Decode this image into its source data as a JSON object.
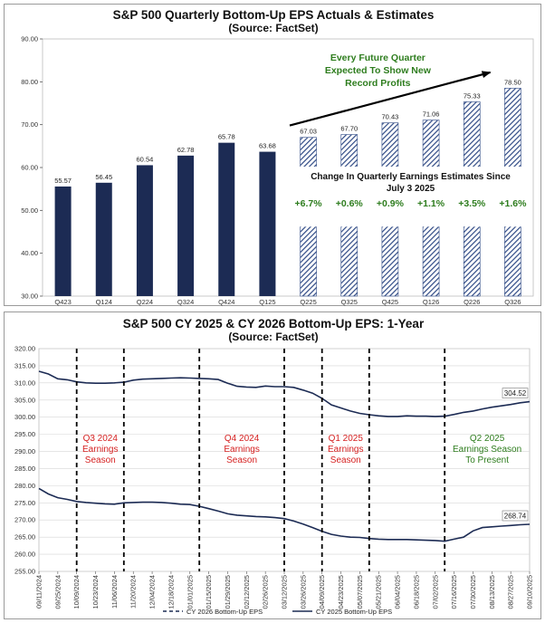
{
  "chart_data": [
    {
      "type": "bar",
      "title": "S&P 500 Quarterly Bottom-Up EPS Actuals & Estimates",
      "subtitle": "(Source: FactSet)",
      "categories": [
        "Q423",
        "Q124",
        "Q224",
        "Q324",
        "Q424",
        "Q125",
        "Q225",
        "Q325",
        "Q425",
        "Q126",
        "Q226",
        "Q326"
      ],
      "series": [
        {
          "values": [
            55.57,
            56.45,
            60.54,
            62.78,
            65.78,
            63.68,
            67.03,
            67.7,
            70.43,
            71.06,
            75.33,
            78.5
          ]
        }
      ],
      "value_labels": [
        "55.57",
        "56.45",
        "60.54",
        "62.78",
        "65.78",
        "63.68",
        "67.03",
        "67.70",
        "70.43",
        "71.06",
        "75.33",
        "78.50"
      ],
      "actual_count": 6,
      "ylim": [
        30,
        90
      ],
      "yticks": [
        "30.00",
        "40.00",
        "50.00",
        "60.00",
        "70.00",
        "80.00",
        "90.00"
      ],
      "ytick_values": [
        30,
        40,
        50,
        60,
        70,
        80,
        90
      ],
      "annotation_lines": [
        "Every Future Quarter",
        "Expected To Show New",
        "Record Profits"
      ],
      "change_title_lines": [
        "Change In Quarterly Earnings Estimates Since",
        "July 3 2025"
      ],
      "changes": [
        "+6.7%",
        "+0.6%",
        "+0.9%",
        "+1.1%",
        "+3.5%",
        "+1.6%"
      ],
      "colors": {
        "actual": "#1c2b54",
        "estimate": "#2f4a85",
        "annotation": "#2e7d1e"
      }
    },
    {
      "type": "line",
      "title": "S&P 500 CY 2025 & CY 2026 Bottom-Up EPS: 1-Year",
      "subtitle": "(Source: FactSet)",
      "x": [
        "09/11/2024",
        "09/18/2024",
        "09/25/2024",
        "10/02/2024",
        "10/09/2024",
        "10/16/2024",
        "10/23/2024",
        "10/30/2024",
        "11/06/2024",
        "11/13/2024",
        "11/20/2024",
        "11/27/2024",
        "12/04/2024",
        "12/11/2024",
        "12/18/2024",
        "12/25/2024",
        "01/01/2025",
        "01/08/2025",
        "01/15/2025",
        "01/22/2025",
        "01/29/2025",
        "02/05/2025",
        "02/12/2025",
        "02/19/2025",
        "02/26/2025",
        "03/05/2025",
        "03/12/2025",
        "03/19/2025",
        "03/26/2025",
        "04/02/2025",
        "04/09/2025",
        "04/16/2025",
        "04/23/2025",
        "04/30/2025",
        "05/07/2025",
        "05/14/2025",
        "05/21/2025",
        "05/28/2025",
        "06/04/2025",
        "06/11/2025",
        "06/18/2025",
        "06/25/2025",
        "07/02/2025",
        "07/09/2025",
        "07/16/2025",
        "07/23/2025",
        "07/30/2025",
        "08/06/2025",
        "08/13/2025",
        "08/20/2025",
        "08/27/2025",
        "09/03/2025",
        "09/10/2025"
      ],
      "xtick_labels": [
        "09/11/2024",
        "09/25/2024",
        "10/09/2024",
        "10/23/2024",
        "11/06/2024",
        "11/20/2024",
        "12/04/2024",
        "12/18/2024",
        "01/01/2025",
        "01/15/2025",
        "01/29/2025",
        "02/12/2025",
        "02/26/2025",
        "03/12/2025",
        "03/26/2025",
        "04/09/2025",
        "04/23/2025",
        "05/07/2025",
        "05/21/2025",
        "06/04/2025",
        "06/18/2025",
        "07/02/2025",
        "07/16/2025",
        "07/30/2025",
        "08/13/2025",
        "08/27/2025",
        "09/10/2025"
      ],
      "xtick_labels_shown": [
        "09/11/2024",
        "09/25/2024",
        "10/09/2024",
        "10/23/2024",
        "11/06/2024",
        "11/20/2024",
        "12/04/2024",
        "12/18/2024",
        "01/01/2025",
        "01/15/2025",
        "01/29/2025",
        "02/12/2025",
        "02/26/2025",
        "03/12/2025",
        "03/26/2025",
        "04/09/2025",
        "04/23/2025",
        "05/07/2025",
        "05/21/2025",
        "06/04/2025",
        "06/18/2025",
        "07/02/2025",
        "07/16/2025",
        "07/30/2025",
        "08/13/2025",
        "08/27/2025",
        "09/10/2025"
      ],
      "series": [
        {
          "name": "CY 2026 Bottom-Up EPS",
          "style": "dashed",
          "values": [
            313.4,
            312.6,
            311.2,
            310.9,
            310.3,
            310.0,
            309.9,
            309.9,
            310.0,
            310.2,
            310.8,
            311.1,
            311.2,
            311.3,
            311.4,
            311.5,
            311.4,
            311.3,
            311.2,
            311.0,
            309.9,
            309.0,
            308.8,
            308.7,
            309.1,
            308.9,
            308.9,
            308.7,
            307.9,
            307.0,
            305.5,
            303.6,
            302.7,
            301.8,
            301.1,
            300.7,
            300.4,
            300.2,
            300.2,
            300.4,
            300.3,
            300.3,
            300.2,
            300.3,
            300.8,
            301.4,
            301.8,
            302.4,
            302.9,
            303.3,
            303.7,
            304.2,
            304.52
          ]
        },
        {
          "name": "CY 2025 Bottom-Up EPS",
          "style": "solid",
          "values": [
            279.2,
            277.6,
            276.5,
            276.0,
            275.4,
            275.1,
            274.9,
            274.7,
            274.6,
            275.0,
            275.1,
            275.2,
            275.2,
            275.1,
            274.9,
            274.6,
            274.5,
            274.0,
            273.3,
            272.6,
            271.8,
            271.4,
            271.2,
            271.0,
            270.9,
            270.7,
            270.4,
            269.7,
            268.8,
            267.8,
            266.7,
            265.8,
            265.3,
            265.0,
            264.9,
            264.6,
            264.4,
            264.3,
            264.3,
            264.3,
            264.2,
            264.1,
            264.0,
            263.8,
            264.4,
            265.0,
            266.8,
            267.8,
            268.0,
            268.2,
            268.4,
            268.6,
            268.74
          ]
        }
      ],
      "end_labels": [
        "304.52",
        "268.74"
      ],
      "ylim": [
        255,
        320
      ],
      "yticks": [
        "255.00",
        "260.00",
        "265.00",
        "270.00",
        "275.00",
        "280.00",
        "285.00",
        "290.00",
        "295.00",
        "300.00",
        "305.00",
        "310.00",
        "315.00",
        "320.00"
      ],
      "ytick_values": [
        255,
        260,
        265,
        270,
        275,
        280,
        285,
        290,
        295,
        300,
        305,
        310,
        315,
        320
      ],
      "season_dividers": [
        "10/09/2024",
        "11/13/2024",
        "01/08/2025",
        "03/12/2025",
        "04/09/2025",
        "05/14/2025",
        "07/09/2025"
      ],
      "seasons": [
        {
          "lines": [
            "Q3 2024",
            "Earnings",
            "Season"
          ]
        },
        {
          "lines": [
            "Q4 2024",
            "Earnings",
            "Season"
          ]
        },
        {
          "lines": [
            "Q1 2025",
            "Earnings",
            "Season"
          ]
        },
        {
          "lines": [
            "Q2 2025",
            "Earnings Season",
            "To Present"
          ]
        }
      ],
      "legend": [
        "CY 2026 Bottom-Up EPS",
        "CY 2025 Bottom-Up EPS"
      ],
      "legend_position": "bottom",
      "colors": {
        "line": "#1c2b54",
        "season_red": "#d51f1f",
        "season_green": "#2e7d1e"
      }
    }
  ]
}
